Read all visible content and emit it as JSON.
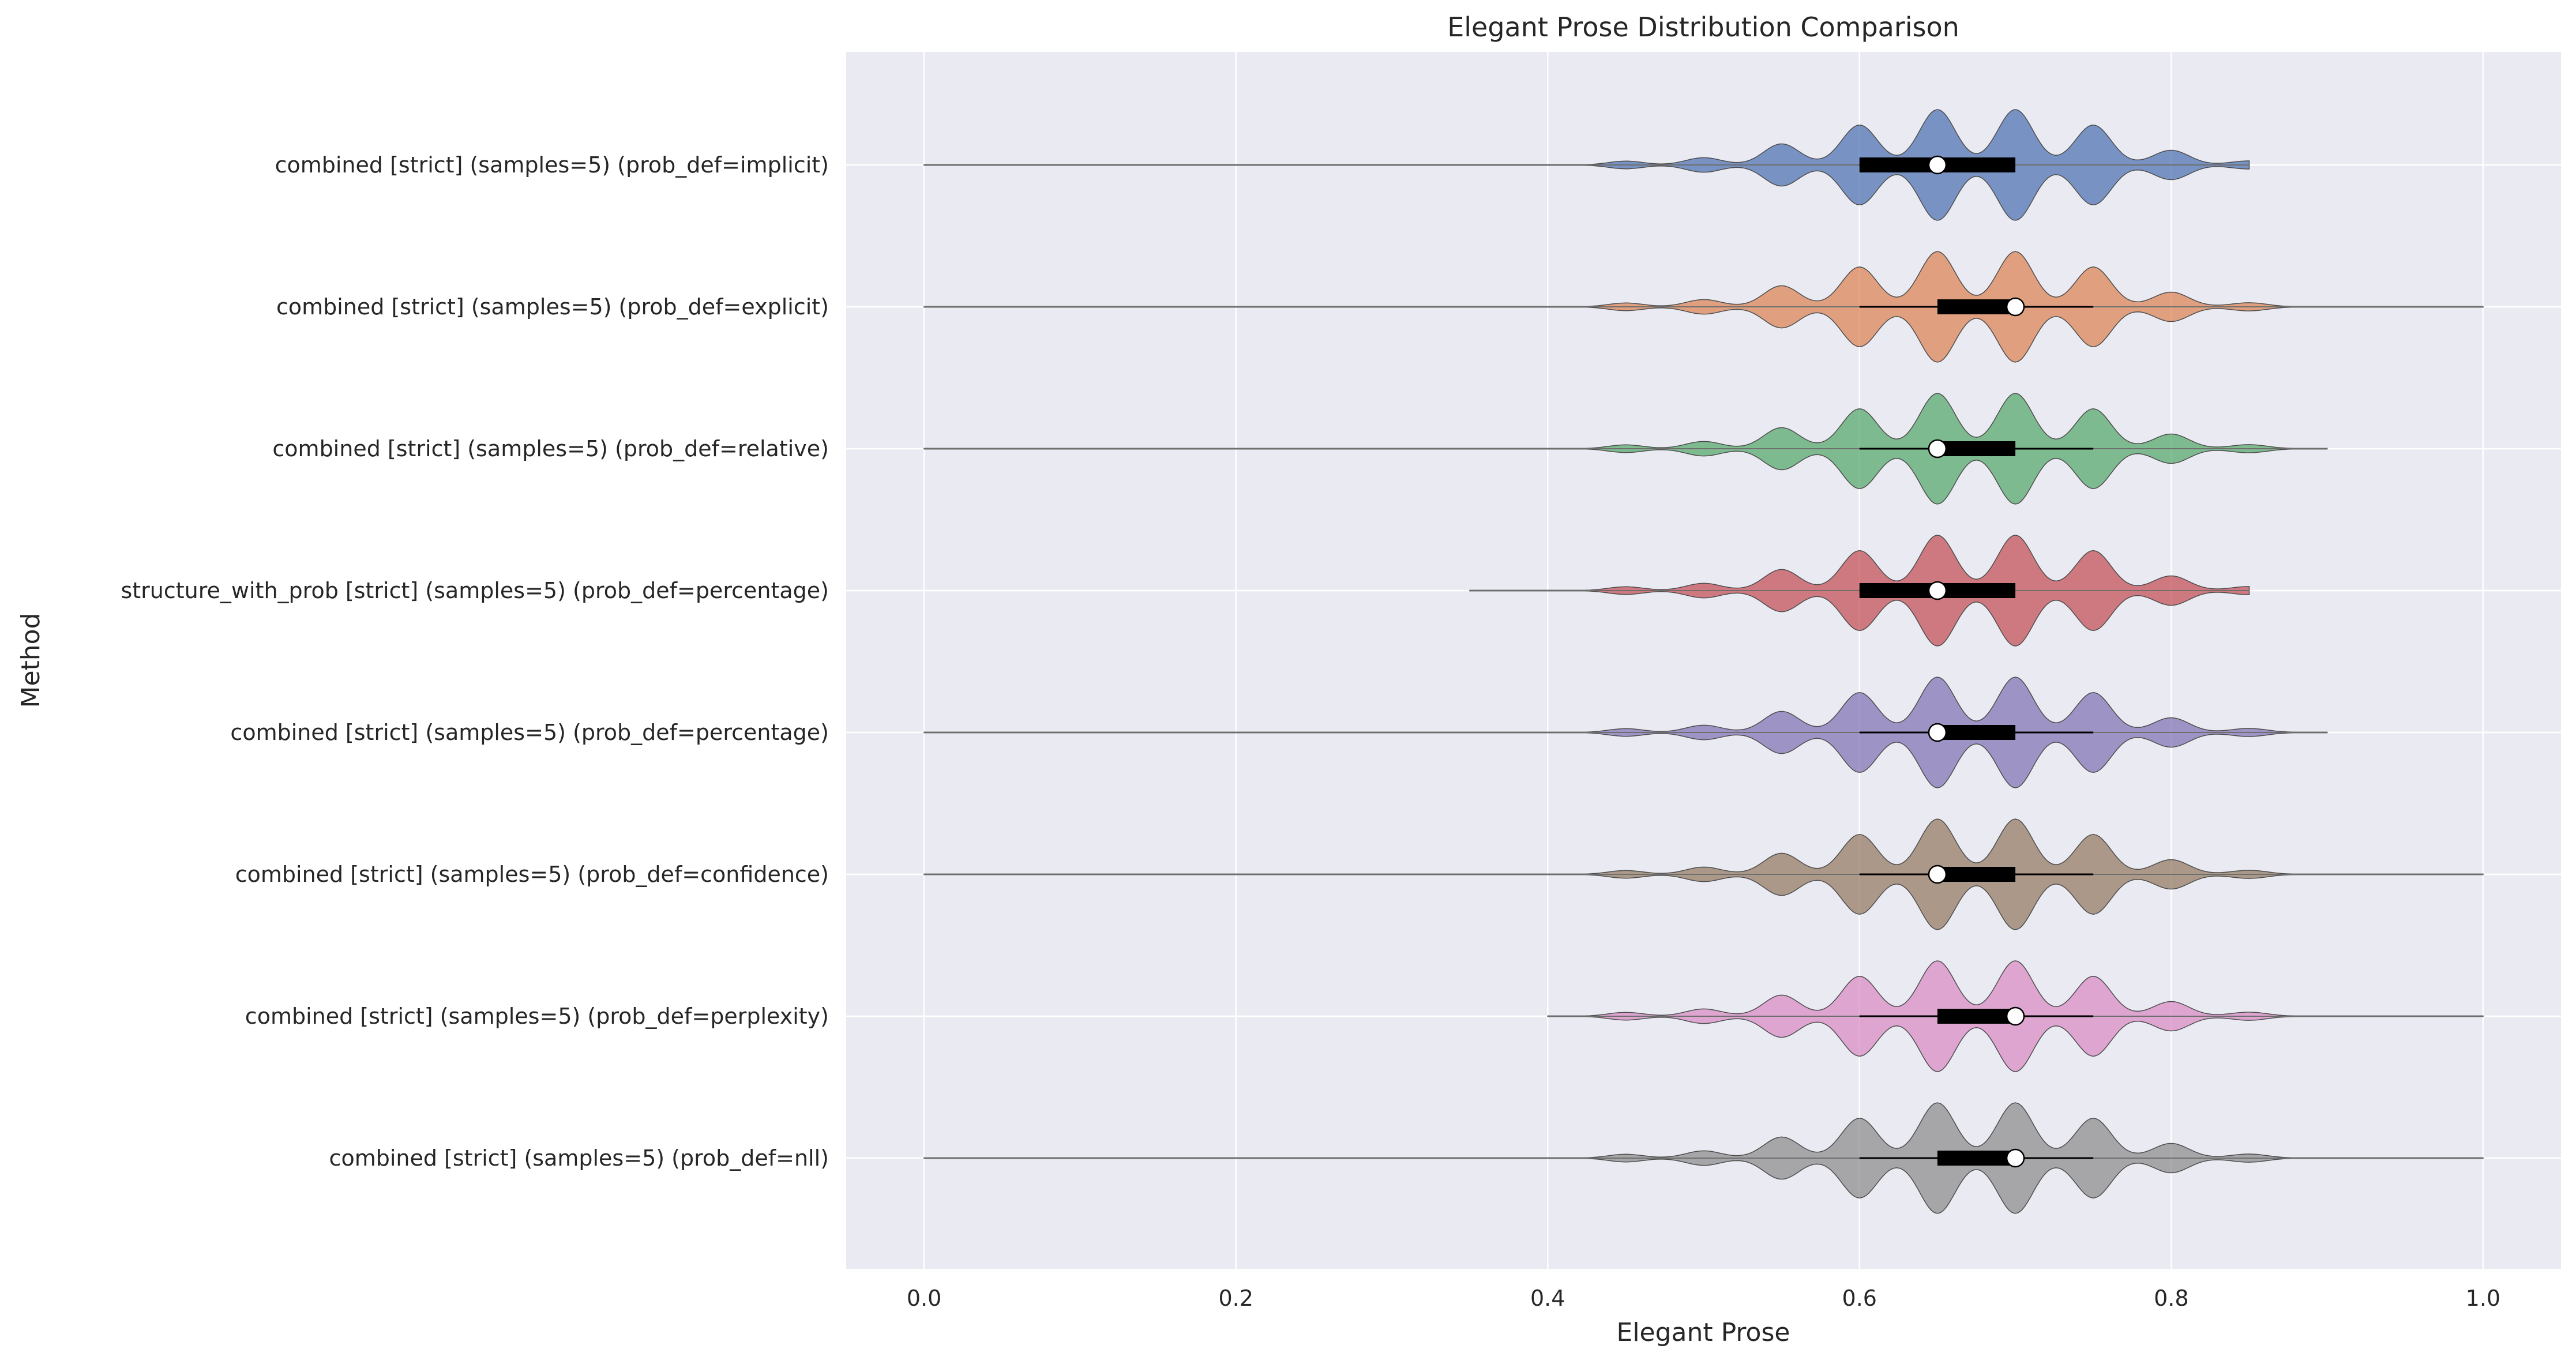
{
  "chart_data": {
    "type": "violin",
    "orientation": "horizontal",
    "title": "Elegant Prose Distribution Comparison",
    "xlabel": "Elegant Prose",
    "ylabel": "Method",
    "xlim": [
      -0.05,
      1.05
    ],
    "xticks": [
      0.0,
      0.2,
      0.4,
      0.6,
      0.8,
      1.0
    ],
    "xtick_labels": [
      "0.0",
      "0.2",
      "0.4",
      "0.6",
      "0.8",
      "1.0"
    ],
    "grid": true,
    "series": [
      {
        "category": "combined [strict] (samples=5) (prob_def=implicit)",
        "color": "#4C72B0",
        "min": 0.0,
        "max": 0.85,
        "q1": 0.6,
        "median": 0.65,
        "q3": 0.7,
        "whisker_low": 0.6,
        "whisker_high": 0.7
      },
      {
        "category": "combined [strict] (samples=5) (prob_def=explicit)",
        "color": "#DD8452",
        "min": 0.0,
        "max": 1.0,
        "q1": 0.65,
        "median": 0.7,
        "q3": 0.7,
        "whisker_low": 0.6,
        "whisker_high": 0.75
      },
      {
        "category": "combined [strict] (samples=5) (prob_def=relative)",
        "color": "#55A868",
        "min": 0.0,
        "max": 0.9,
        "q1": 0.65,
        "median": 0.65,
        "q3": 0.7,
        "whisker_low": 0.6,
        "whisker_high": 0.75
      },
      {
        "category": "structure_with_prob [strict] (samples=5) (prob_def=percentage)",
        "color": "#C44E52",
        "min": 0.35,
        "max": 0.85,
        "q1": 0.6,
        "median": 0.65,
        "q3": 0.7,
        "whisker_low": 0.6,
        "whisker_high": 0.7
      },
      {
        "category": "combined [strict] (samples=5) (prob_def=percentage)",
        "color": "#8172B3",
        "min": 0.0,
        "max": 0.9,
        "q1": 0.65,
        "median": 0.65,
        "q3": 0.7,
        "whisker_low": 0.6,
        "whisker_high": 0.75
      },
      {
        "category": "combined [strict] (samples=5) (prob_def=confidence)",
        "color": "#937860",
        "min": 0.0,
        "max": 1.0,
        "q1": 0.65,
        "median": 0.65,
        "q3": 0.7,
        "whisker_low": 0.6,
        "whisker_high": 0.75
      },
      {
        "category": "combined [strict] (samples=5) (prob_def=perplexity)",
        "color": "#DA8BC3",
        "min": 0.4,
        "max": 1.0,
        "q1": 0.65,
        "median": 0.7,
        "q3": 0.7,
        "whisker_low": 0.6,
        "whisker_high": 0.75
      },
      {
        "category": "combined [strict] (samples=5) (prob_def=nll)",
        "color": "#8C8C8C",
        "min": 0.0,
        "max": 1.0,
        "q1": 0.65,
        "median": 0.7,
        "q3": 0.7,
        "whisker_low": 0.6,
        "whisker_high": 0.75
      }
    ]
  }
}
